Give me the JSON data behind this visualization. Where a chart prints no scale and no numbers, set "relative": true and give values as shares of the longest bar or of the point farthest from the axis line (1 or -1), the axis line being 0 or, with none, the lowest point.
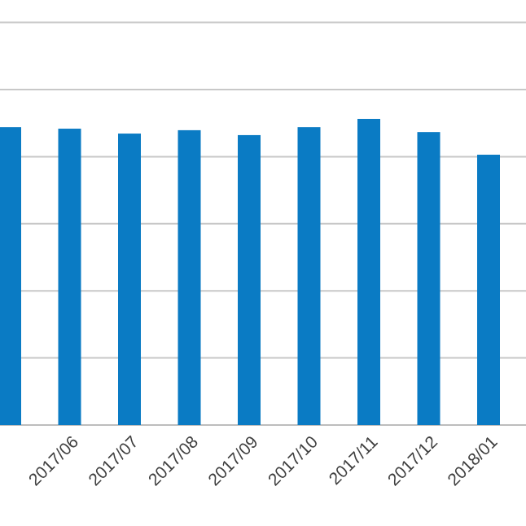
{
  "chart_data": {
    "type": "bar",
    "relative": true,
    "grid": "y",
    "color": "#0a7bc4",
    "categories": [
      null,
      "2017/06",
      "2017/07",
      "2017/08",
      "2017/09",
      "2017/10",
      "2017/11",
      "2017/12",
      "2018/01"
    ],
    "values": [
      0.973,
      0.968,
      0.952,
      0.963,
      0.947,
      0.973,
      1,
      0.957,
      0.883
    ]
  }
}
